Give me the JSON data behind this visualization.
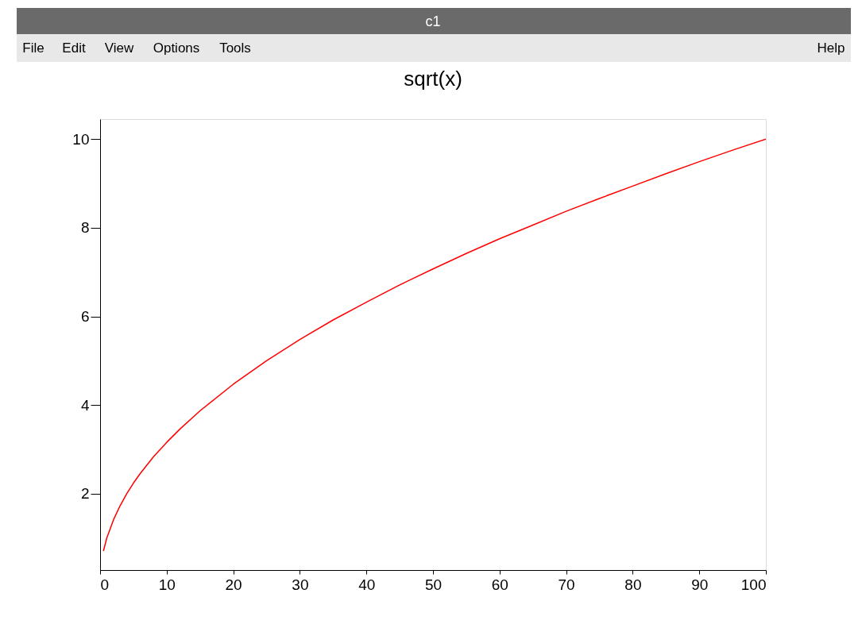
{
  "chart_data": {
    "type": "line",
    "title": "sqrt(x)",
    "annotations": [
      "c1",
      "File",
      "Edit",
      "View",
      "Options",
      "Tools",
      "Help"
    ],
    "x": [
      0.5,
      1,
      2,
      3,
      4,
      5,
      6,
      8,
      10,
      12,
      15,
      20,
      25,
      30,
      35,
      40,
      45,
      50,
      55,
      60,
      65,
      70,
      75,
      80,
      85,
      90,
      95,
      100
    ],
    "series": [
      {
        "color": "#ff0000",
        "values": [
          0.71,
          1.0,
          1.41,
          1.73,
          2.0,
          2.24,
          2.45,
          2.83,
          3.16,
          3.46,
          3.87,
          4.47,
          5.0,
          5.48,
          5.92,
          6.32,
          6.71,
          7.07,
          7.42,
          7.75,
          8.06,
          8.37,
          8.66,
          8.94,
          9.22,
          9.49,
          9.75,
          10.0
        ]
      }
    ],
    "xlim": [
      0,
      100
    ],
    "ylim": [
      0.28,
      10.45
    ],
    "xticks": [
      0,
      10,
      20,
      30,
      40,
      50,
      60,
      70,
      80,
      90,
      100
    ],
    "yticks": [
      2,
      4,
      6,
      8,
      10
    ],
    "grid": false,
    "marker": "none",
    "line_style": "solid"
  }
}
